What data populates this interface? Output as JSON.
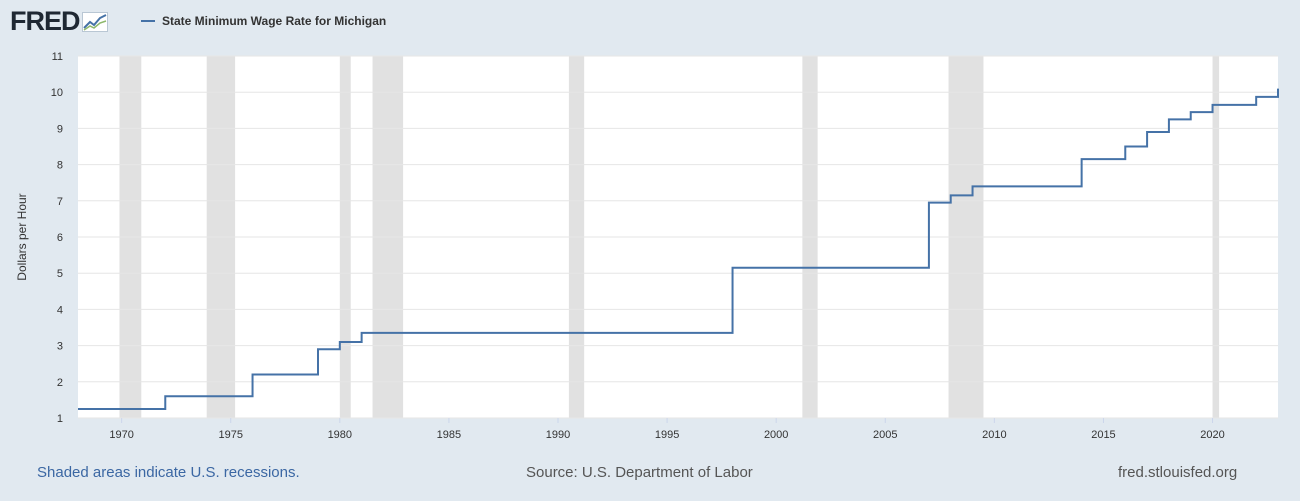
{
  "header": {
    "logo_text": "FRED",
    "logo_icon": "trend-line-icon"
  },
  "chart_data": {
    "type": "line",
    "step": true,
    "series": [
      {
        "name": "State Minimum Wage Rate for Michigan",
        "color": "#4572a7",
        "x": [
          1968,
          1972,
          1976,
          1979,
          1980,
          1981,
          1998,
          2007,
          2008,
          2009,
          2014,
          2016,
          2017,
          2018,
          2019,
          2020,
          2022,
          2023
        ],
        "y": [
          1.25,
          1.6,
          2.2,
          2.9,
          3.1,
          3.35,
          5.15,
          6.95,
          7.15,
          7.4,
          8.15,
          8.5,
          8.9,
          9.25,
          9.45,
          9.65,
          9.87,
          10.1
        ]
      }
    ],
    "xlim": [
      1968,
      2023
    ],
    "ylim": [
      1,
      11
    ],
    "xticks": [
      "1970",
      "1975",
      "1980",
      "1985",
      "1990",
      "1995",
      "2000",
      "2005",
      "2010",
      "2015",
      "2020"
    ],
    "yticks": [
      "1",
      "2",
      "3",
      "4",
      "5",
      "6",
      "7",
      "8",
      "9",
      "10",
      "11"
    ],
    "ylabel": "Dollars per Hour",
    "xlabel": "",
    "grid": true,
    "legend": "top-left",
    "recessions": [
      [
        1969.9,
        1970.9
      ],
      [
        1973.9,
        1975.2
      ],
      [
        1980.0,
        1980.5
      ],
      [
        1981.5,
        1982.9
      ],
      [
        1990.5,
        1991.2
      ],
      [
        2001.2,
        2001.9
      ],
      [
        2007.9,
        2009.5
      ],
      [
        2020.0,
        2020.3
      ]
    ],
    "recession_color": "#e1e1e1"
  },
  "footer": {
    "recession_note": "Shaded areas indicate U.S. recessions.",
    "source": "Source: U.S. Department of Labor",
    "site": "fred.stlouisfed.org"
  }
}
